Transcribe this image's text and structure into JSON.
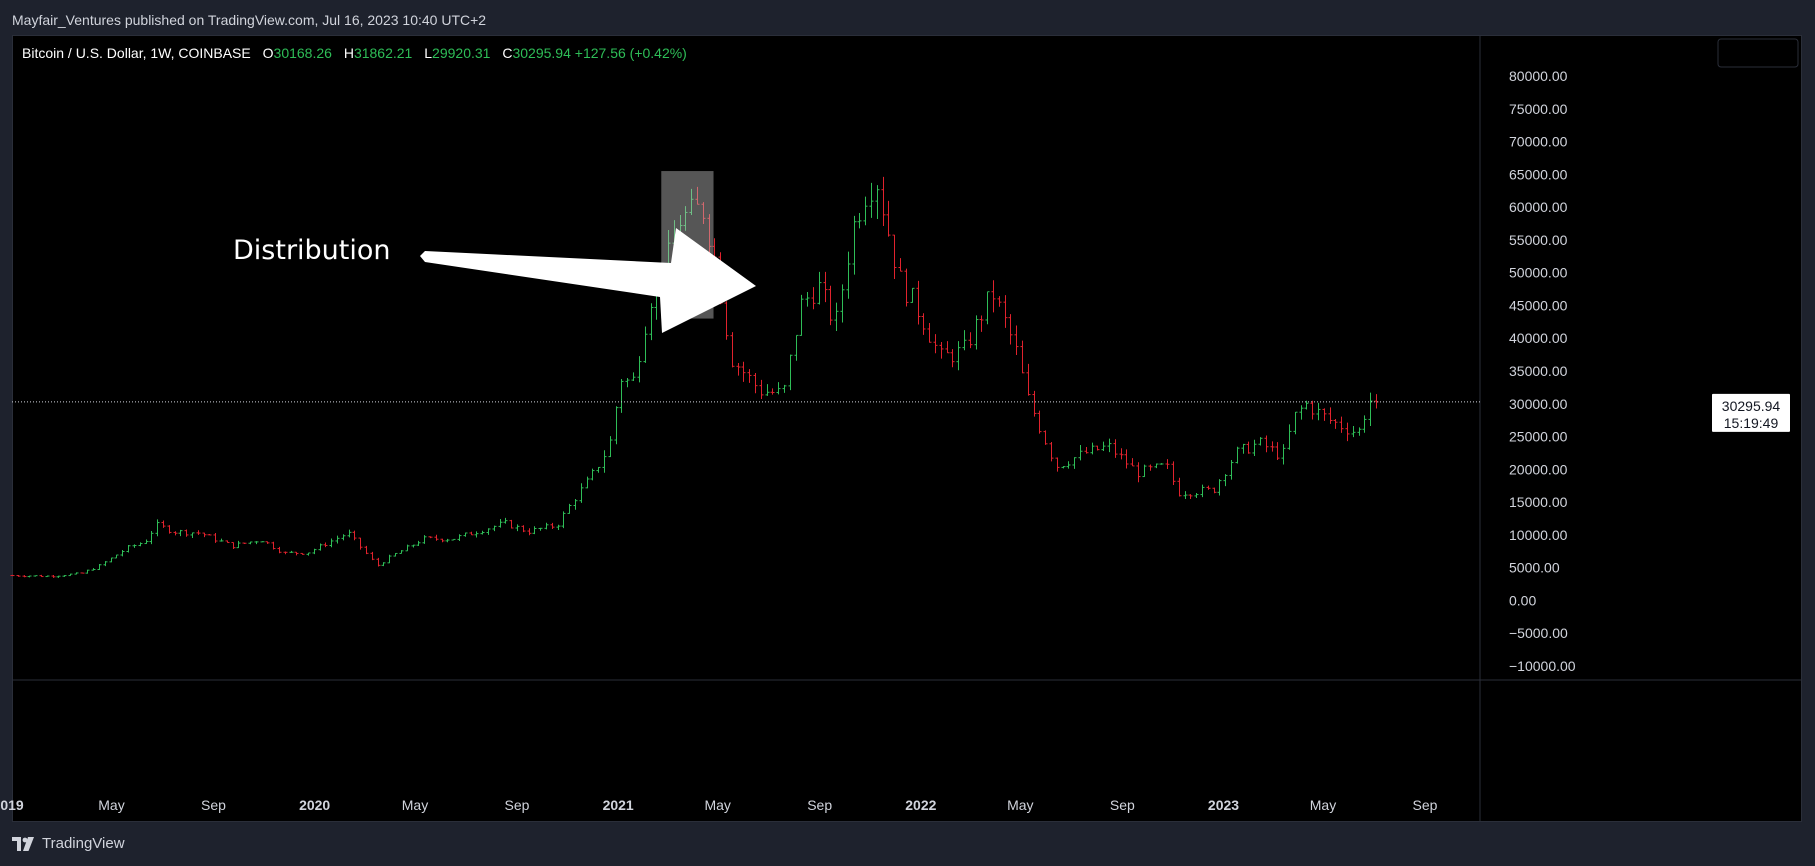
{
  "header": {
    "published": "Mayfair_Ventures published on TradingView.com, Jul 16, 2023 10:40 UTC+2"
  },
  "legend": {
    "symbol": "Bitcoin / U.S. Dollar, 1W, COINBASE",
    "o_label": "O",
    "o_value": "30168.26",
    "h_label": "H",
    "h_value": "31862.21",
    "l_label": "L",
    "l_value": "29920.31",
    "c_label": "C",
    "c_value": "30295.94",
    "change": "+127.56 (+0.42%)"
  },
  "footer": {
    "brand": "TradingView"
  },
  "colors": {
    "up": "#2ebd57",
    "down": "#e0222d",
    "background": "#000000",
    "panel": "#1e222d"
  },
  "chart_data": {
    "type": "ohlc",
    "title": "Bitcoin / U.S. Dollar, 1W, COINBASE",
    "ylim": [
      -12000,
      84000
    ],
    "y_ticks": [
      "80000.00",
      "75000.00",
      "70000.00",
      "65000.00",
      "60000.00",
      "55000.00",
      "50000.00",
      "45000.00",
      "40000.00",
      "35000.00",
      "30000.00",
      "25000.00",
      "20000.00",
      "15000.00",
      "10000.00",
      "5000.00",
      "0.00",
      "−5000.00",
      "−10000.00"
    ],
    "y_tick_values": [
      80000,
      75000,
      70000,
      65000,
      60000,
      55000,
      50000,
      45000,
      40000,
      35000,
      30000,
      25000,
      20000,
      15000,
      10000,
      5000,
      0,
      -5000,
      -10000
    ],
    "x_ticks": [
      {
        "label": "019",
        "date": "2019-01-01",
        "bold": true
      },
      {
        "label": "May",
        "date": "2019-05-01",
        "bold": false
      },
      {
        "label": "Sep",
        "date": "2019-09-01",
        "bold": false
      },
      {
        "label": "2020",
        "date": "2020-01-01",
        "bold": true
      },
      {
        "label": "May",
        "date": "2020-05-01",
        "bold": false
      },
      {
        "label": "Sep",
        "date": "2020-09-01",
        "bold": false
      },
      {
        "label": "2021",
        "date": "2021-01-01",
        "bold": true
      },
      {
        "label": "May",
        "date": "2021-05-01",
        "bold": false
      },
      {
        "label": "Sep",
        "date": "2021-09-01",
        "bold": false
      },
      {
        "label": "2022",
        "date": "2022-01-01",
        "bold": true
      },
      {
        "label": "May",
        "date": "2022-05-01",
        "bold": false
      },
      {
        "label": "Sep",
        "date": "2022-09-01",
        "bold": false
      },
      {
        "label": "2023",
        "date": "2023-01-01",
        "bold": true
      },
      {
        "label": "May",
        "date": "2023-05-01",
        "bold": false
      },
      {
        "label": "Sep",
        "date": "2023-09-01",
        "bold": false
      }
    ],
    "last_price": {
      "value": 30295.94,
      "label": "30295.94",
      "countdown": "15:19:49"
    },
    "annotation": {
      "text": "Distribution",
      "box_from": "2021-02-22",
      "box_to": "2021-04-26",
      "box_low": 43000,
      "box_high": 65500
    },
    "close_keypoints": [
      [
        "2019-01-01",
        3800
      ],
      [
        "2019-02-15",
        3700
      ],
      [
        "2019-03-25",
        4100
      ],
      [
        "2019-04-15",
        5200
      ],
      [
        "2019-05-20",
        8000
      ],
      [
        "2019-06-10",
        9000
      ],
      [
        "2019-06-24",
        11500
      ],
      [
        "2019-07-15",
        10500
      ],
      [
        "2019-08-15",
        10300
      ],
      [
        "2019-09-23",
        8300
      ],
      [
        "2019-10-28",
        9300
      ],
      [
        "2019-11-25",
        7200
      ],
      [
        "2019-12-23",
        7300
      ],
      [
        "2020-02-10",
        10300
      ],
      [
        "2020-03-16",
        5300
      ],
      [
        "2020-04-06",
        7000
      ],
      [
        "2020-05-11",
        9400
      ],
      [
        "2020-06-15",
        9400
      ],
      [
        "2020-07-27",
        11000
      ],
      [
        "2020-08-17",
        11800
      ],
      [
        "2020-09-14",
        10500
      ],
      [
        "2020-10-19",
        11500
      ],
      [
        "2020-11-09",
        15500
      ],
      [
        "2020-11-30",
        19000
      ],
      [
        "2020-12-21",
        23500
      ],
      [
        "2021-01-04",
        34000
      ],
      [
        "2021-01-18",
        33000
      ],
      [
        "2021-02-08",
        46000
      ],
      [
        "2021-02-22",
        49000
      ],
      [
        "2021-03-15",
        58000
      ],
      [
        "2021-04-12",
        60000
      ],
      [
        "2021-04-26",
        53000
      ],
      [
        "2021-05-17",
        37000
      ],
      [
        "2021-06-21",
        32000
      ],
      [
        "2021-07-19",
        31500
      ],
      [
        "2021-08-09",
        45000
      ],
      [
        "2021-08-30",
        48000
      ],
      [
        "2021-09-20",
        42000
      ],
      [
        "2021-10-11",
        57000
      ],
      [
        "2021-10-25",
        62000
      ],
      [
        "2021-11-08",
        64500
      ],
      [
        "2021-12-06",
        49000
      ],
      [
        "2022-01-03",
        43000
      ],
      [
        "2022-01-24",
        37000
      ],
      [
        "2022-02-21",
        38000
      ],
      [
        "2022-03-28",
        47000
      ],
      [
        "2022-04-25",
        38500
      ],
      [
        "2022-05-09",
        31000
      ],
      [
        "2022-06-13",
        20500
      ],
      [
        "2022-07-18",
        22500
      ],
      [
        "2022-08-15",
        23500
      ],
      [
        "2022-09-19",
        19500
      ],
      [
        "2022-10-24",
        20500
      ],
      [
        "2022-11-07",
        16500
      ],
      [
        "2022-12-19",
        16800
      ],
      [
        "2023-01-16",
        22500
      ],
      [
        "2023-02-13",
        24000
      ],
      [
        "2023-03-13",
        22000
      ],
      [
        "2023-03-27",
        28000
      ],
      [
        "2023-04-10",
        30000
      ],
      [
        "2023-05-08",
        27500
      ],
      [
        "2023-06-12",
        25500
      ],
      [
        "2023-06-26",
        30500
      ],
      [
        "2023-07-10",
        30295.94
      ]
    ]
  }
}
